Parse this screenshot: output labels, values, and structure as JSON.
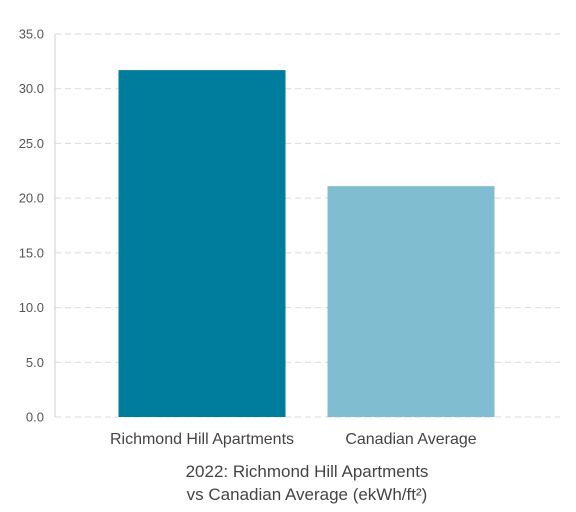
{
  "chart_data": {
    "type": "bar",
    "title": [
      "2022: Richmond Hill Apartments",
      "vs Canadian Average (ekWh/ft²)"
    ],
    "xlabel": "",
    "ylabel": "",
    "categories": [
      "Richmond Hill Apartments",
      "Canadian Average"
    ],
    "values": [
      31.7,
      21.1
    ],
    "colors": [
      "#007c9c",
      "#80bdd1"
    ],
    "ylim": [
      0,
      35
    ],
    "yticks": [
      "0.0",
      "5.0",
      "10.0",
      "15.0",
      "20.0",
      "25.0",
      "30.0",
      "35.0"
    ],
    "grid": true,
    "legend": "none"
  }
}
